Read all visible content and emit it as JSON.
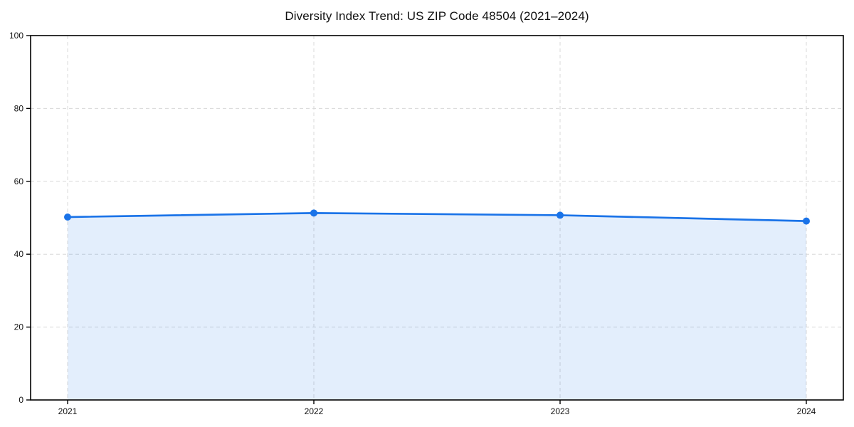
{
  "chart_data": {
    "type": "area",
    "title": "Diversity Index Trend: US ZIP Code 48504 (2021–2024)",
    "x": [
      2021,
      2022,
      2023,
      2024
    ],
    "values": [
      50.2,
      51.3,
      50.7,
      49.1
    ],
    "xticks": [
      "2021",
      "2022",
      "2023",
      "2024"
    ],
    "yticks": [
      0,
      20,
      40,
      60,
      80,
      100
    ],
    "ylim": [
      0,
      100
    ],
    "xlabel": "",
    "ylabel": "",
    "grid": true,
    "legend": "none",
    "line_color": "#1a73e8",
    "marker_color": "#1a73e8",
    "fill_color": "rgba(26,115,232,0.12)",
    "grid_color": "#d8d8d8",
    "frame_color": "#000000",
    "tick_label_color": "#111111",
    "background_color": "#ffffff"
  }
}
